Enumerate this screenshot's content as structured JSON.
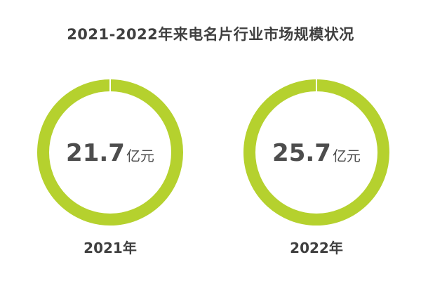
{
  "chart_data": {
    "type": "pie",
    "title": "2021-2022年来电名片行业市场规模状况",
    "unit": "亿元",
    "categories": [
      "2021年",
      "2022年"
    ],
    "values": [
      21.7,
      25.7
    ],
    "value_labels": [
      "21.7",
      "25.7"
    ],
    "colors": {
      "ring": "#b5d12e",
      "gap": "#ffffff"
    }
  }
}
